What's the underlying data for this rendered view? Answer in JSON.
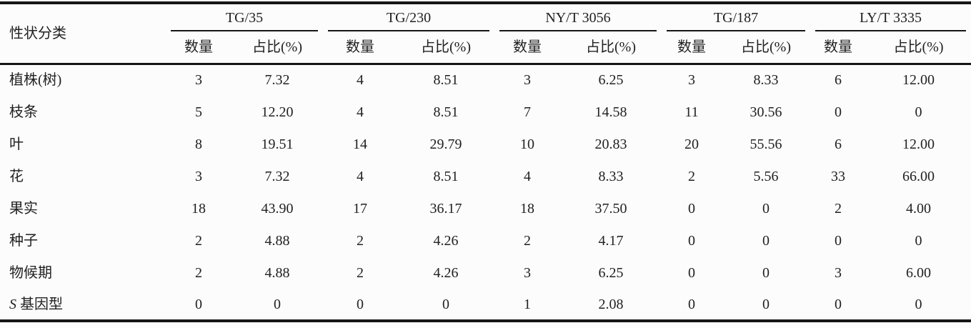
{
  "colors": {
    "background": "#fcfcfc",
    "text": "#212121",
    "rule_lines": "#161616"
  },
  "table": {
    "row_header_label": "性状分类",
    "groups": [
      {
        "label": "TG/35"
      },
      {
        "label": "TG/230"
      },
      {
        "label": "NY/T 3056"
      },
      {
        "label": "TG/187"
      },
      {
        "label": "LY/T 3335"
      }
    ],
    "sub_headers": {
      "count": "数量",
      "percent": "占比(%)"
    },
    "rows": [
      {
        "trait_italic": "",
        "trait": "植株(树)",
        "values": [
          "3",
          "7.32",
          "4",
          "8.51",
          "3",
          "6.25",
          "3",
          "8.33",
          "6",
          "12.00"
        ]
      },
      {
        "trait_italic": "",
        "trait": "枝条",
        "values": [
          "5",
          "12.20",
          "4",
          "8.51",
          "7",
          "14.58",
          "11",
          "30.56",
          "0",
          "0"
        ]
      },
      {
        "trait_italic": "",
        "trait": "叶",
        "values": [
          "8",
          "19.51",
          "14",
          "29.79",
          "10",
          "20.83",
          "20",
          "55.56",
          "6",
          "12.00"
        ]
      },
      {
        "trait_italic": "",
        "trait": "花",
        "values": [
          "3",
          "7.32",
          "4",
          "8.51",
          "4",
          "8.33",
          "2",
          "5.56",
          "33",
          "66.00"
        ]
      },
      {
        "trait_italic": "",
        "trait": "果实",
        "values": [
          "18",
          "43.90",
          "17",
          "36.17",
          "18",
          "37.50",
          "0",
          "0",
          "2",
          "4.00"
        ]
      },
      {
        "trait_italic": "",
        "trait": "种子",
        "values": [
          "2",
          "4.88",
          "2",
          "4.26",
          "2",
          "4.17",
          "0",
          "0",
          "0",
          "0"
        ]
      },
      {
        "trait_italic": "",
        "trait": "物候期",
        "values": [
          "2",
          "4.88",
          "2",
          "4.26",
          "3",
          "6.25",
          "0",
          "0",
          "3",
          "6.00"
        ]
      },
      {
        "trait_italic": "S",
        "trait": "基因型",
        "values": [
          "0",
          "0",
          "0",
          "0",
          "1",
          "2.08",
          "0",
          "0",
          "0",
          "0"
        ]
      }
    ]
  }
}
